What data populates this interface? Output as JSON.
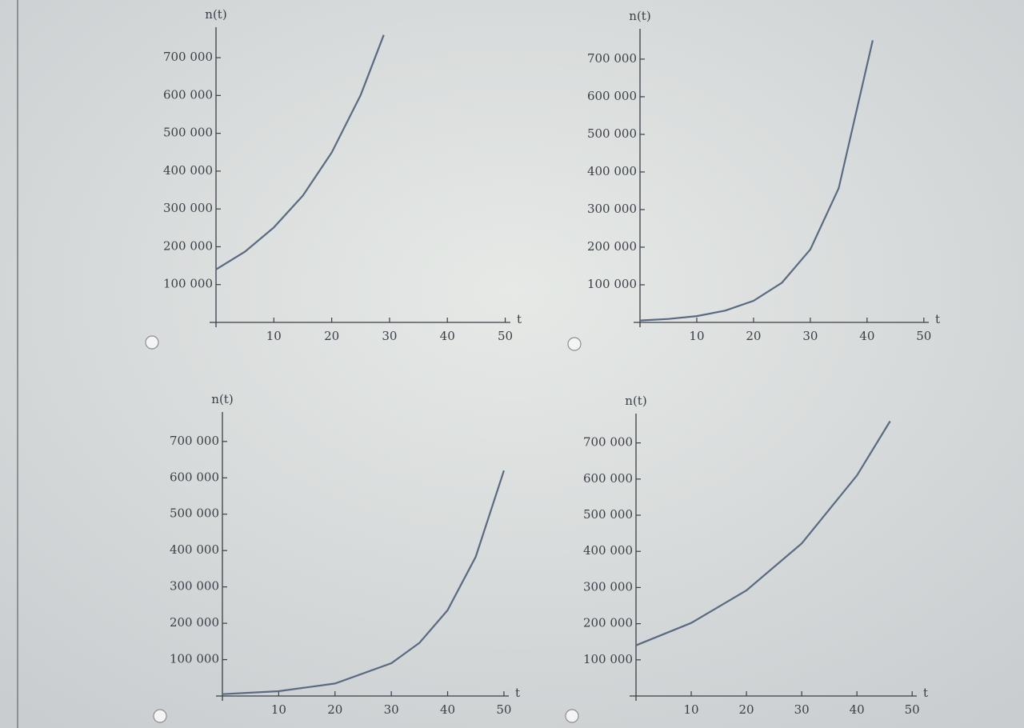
{
  "chart_data": [
    {
      "type": "line",
      "ylabel": "n(t)",
      "xlabel": "t",
      "xlim": [
        0,
        52
      ],
      "ylim": [
        0,
        770000
      ],
      "xticks": [
        10,
        20,
        30,
        40,
        50
      ],
      "yticks": [
        {
          "value": 100000,
          "label": "100 000"
        },
        {
          "value": 200000,
          "label": "200 000"
        },
        {
          "value": 300000,
          "label": "300 000"
        },
        {
          "value": 400000,
          "label": "400 000"
        },
        {
          "value": 500000,
          "label": "500 000"
        },
        {
          "value": 600000,
          "label": "600 000"
        },
        {
          "value": 700000,
          "label": "700 000"
        }
      ],
      "series": [
        {
          "color": "#5a6a82",
          "x": [
            0,
            5,
            10,
            15,
            20,
            25,
            29
          ],
          "values": [
            140000,
            187000,
            251000,
            335000,
            449000,
            601000,
            760000
          ]
        }
      ]
    },
    {
      "type": "line",
      "ylabel": "n(t)",
      "xlabel": "t",
      "xlim": [
        0,
        52
      ],
      "ylim": [
        0,
        770000
      ],
      "xticks": [
        10,
        20,
        30,
        40,
        50
      ],
      "yticks": [
        {
          "value": 100000,
          "label": "100 000"
        },
        {
          "value": 200000,
          "label": "200 000"
        },
        {
          "value": 300000,
          "label": "300 000"
        },
        {
          "value": 400000,
          "label": "400 000"
        },
        {
          "value": 500000,
          "label": "500 000"
        },
        {
          "value": 600000,
          "label": "600 000"
        },
        {
          "value": 700000,
          "label": "700 000"
        }
      ],
      "series": [
        {
          "color": "#5a6a82",
          "x": [
            0,
            5,
            10,
            15,
            20,
            25,
            30,
            35,
            41
          ],
          "values": [
            5000,
            9200,
            16900,
            31200,
            57400,
            105600,
            194000,
            357000,
            750000
          ]
        }
      ]
    },
    {
      "type": "line",
      "ylabel": "n(t)",
      "xlabel": "t",
      "xlim": [
        0,
        52
      ],
      "ylim": [
        0,
        770000
      ],
      "xticks": [
        10,
        20,
        30,
        40,
        50
      ],
      "yticks": [
        {
          "value": 100000,
          "label": "100 000"
        },
        {
          "value": 200000,
          "label": "200 000"
        },
        {
          "value": 300000,
          "label": "300 000"
        },
        {
          "value": 400000,
          "label": "400 000"
        },
        {
          "value": 500000,
          "label": "500 000"
        },
        {
          "value": 600000,
          "label": "600 000"
        },
        {
          "value": 700000,
          "label": "700 000"
        }
      ],
      "series": [
        {
          "color": "#5a6a82",
          "x": [
            0,
            10,
            20,
            30,
            35,
            40,
            45,
            50
          ],
          "values": [
            5000,
            13100,
            34400,
            90100,
            146000,
            236000,
            383000,
            620000
          ]
        }
      ]
    },
    {
      "type": "line",
      "ylabel": "n(t)",
      "xlabel": "t",
      "xlim": [
        0,
        52
      ],
      "ylim": [
        0,
        770000
      ],
      "xticks": [
        10,
        20,
        30,
        40,
        50
      ],
      "yticks": [
        {
          "value": 100000,
          "label": "100 000"
        },
        {
          "value": 200000,
          "label": "200 000"
        },
        {
          "value": 300000,
          "label": "300 000"
        },
        {
          "value": 400000,
          "label": "400 000"
        },
        {
          "value": 500000,
          "label": "500 000"
        },
        {
          "value": 600000,
          "label": "600 000"
        },
        {
          "value": 700000,
          "label": "700 000"
        }
      ],
      "series": [
        {
          "color": "#5a6a82",
          "x": [
            0,
            10,
            20,
            30,
            40,
            46
          ],
          "values": [
            140000,
            202000,
            292000,
            422000,
            610000,
            760000
          ]
        }
      ]
    }
  ]
}
